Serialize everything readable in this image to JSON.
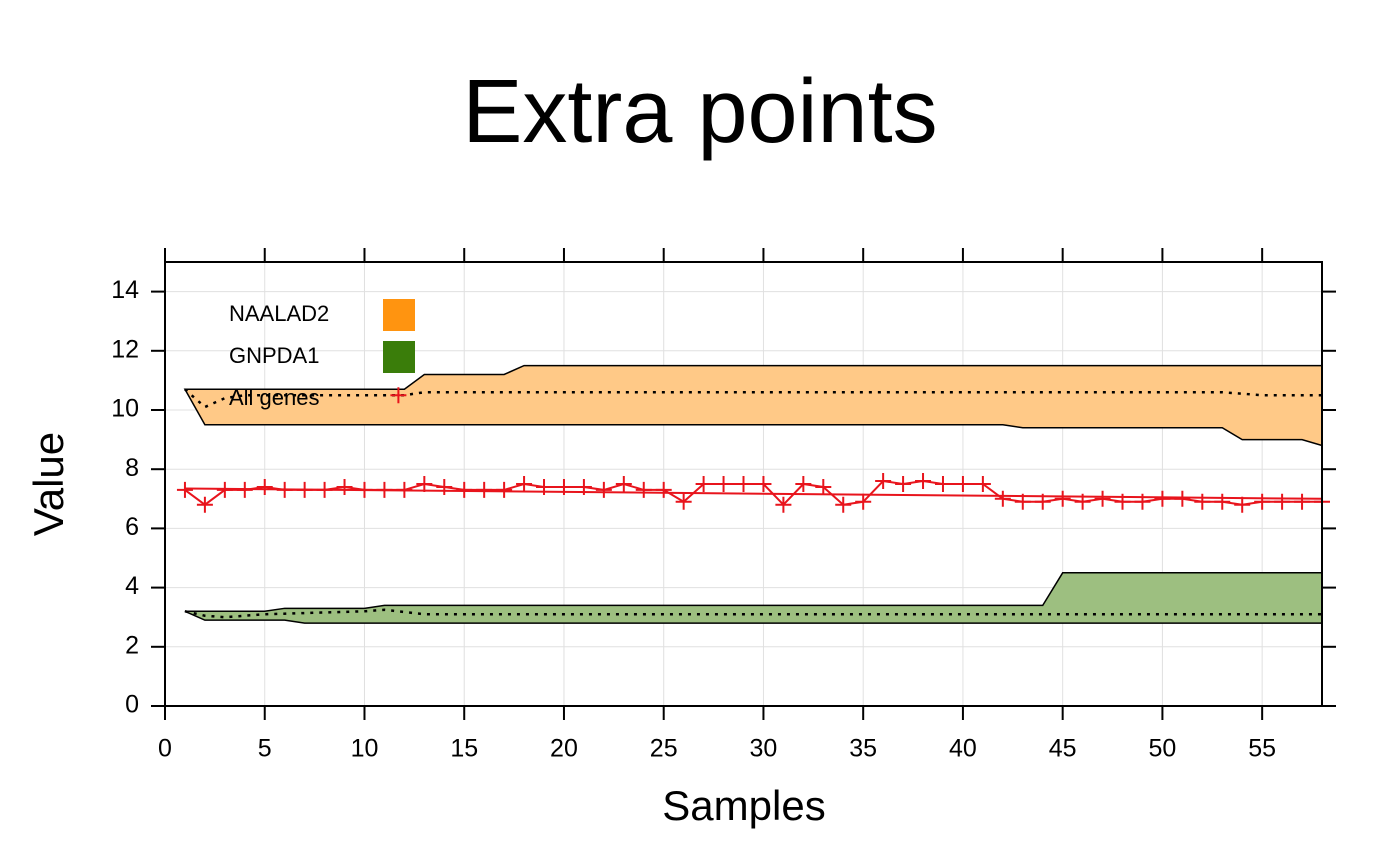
{
  "chart_data": {
    "type": "band",
    "title": "Extra points",
    "x_label": "Samples",
    "y_label": "Value",
    "xlim": [
      0,
      58
    ],
    "ylim": [
      0,
      15
    ],
    "xticks": [
      0,
      5,
      10,
      15,
      20,
      25,
      30,
      35,
      40,
      45,
      50,
      55
    ],
    "yticks": [
      0,
      2,
      4,
      6,
      8,
      10,
      12,
      14
    ],
    "grid": true,
    "legend": "top-left",
    "series": [
      {
        "name": "NAALAD2",
        "color": "#ff9410",
        "fill": "#ffc987",
        "x": [
          1,
          2,
          12,
          13,
          17,
          18,
          42,
          43,
          53,
          54,
          57,
          58
        ],
        "upper": [
          10.7,
          10.7,
          10.7,
          11.2,
          11.2,
          11.5,
          11.5,
          11.5,
          11.5,
          11.5,
          11.5,
          11.5
        ],
        "lower": [
          10.7,
          9.5,
          9.5,
          9.5,
          9.5,
          9.5,
          9.5,
          9.4,
          9.4,
          9.0,
          9.0,
          8.8
        ],
        "median": {
          "x": [
            1,
            2,
            3,
            4,
            12,
            13,
            53,
            54,
            55,
            58
          ],
          "values": [
            10.7,
            10.1,
            10.4,
            10.5,
            10.5,
            10.6,
            10.6,
            10.55,
            10.5,
            10.5
          ]
        }
      },
      {
        "name": "GNPDA1",
        "color": "#3a7d0a",
        "fill": "#9dbf80",
        "x": [
          1,
          2,
          5,
          6,
          7,
          10,
          11,
          44,
          45,
          58
        ],
        "upper": [
          3.2,
          3.2,
          3.2,
          3.3,
          3.3,
          3.3,
          3.4,
          3.4,
          4.5,
          4.5
        ],
        "lower": [
          3.2,
          2.9,
          2.9,
          2.9,
          2.8,
          2.8,
          2.8,
          2.8,
          2.8,
          2.8
        ],
        "median": {
          "x": [
            1,
            2,
            3,
            5,
            10,
            11,
            13,
            58
          ],
          "values": [
            3.2,
            3.05,
            3.0,
            3.1,
            3.2,
            3.25,
            3.1,
            3.1
          ]
        }
      },
      {
        "name": "All genes",
        "color": "#e8141c",
        "x": [
          1,
          2,
          3,
          4,
          5,
          6,
          7,
          8,
          9,
          10,
          11,
          12,
          13,
          14,
          15,
          16,
          17,
          18,
          19,
          20,
          21,
          22,
          23,
          24,
          25,
          26,
          27,
          28,
          29,
          30,
          31,
          32,
          33,
          34,
          35,
          36,
          37,
          38,
          39,
          40,
          41,
          42,
          43,
          44,
          45,
          46,
          47,
          48,
          49,
          50,
          51,
          52,
          53,
          54,
          55,
          56,
          57,
          58
        ],
        "values": [
          7.3,
          6.8,
          7.3,
          7.3,
          7.4,
          7.3,
          7.3,
          7.3,
          7.4,
          7.3,
          7.3,
          7.3,
          7.5,
          7.4,
          7.3,
          7.3,
          7.3,
          7.5,
          7.4,
          7.4,
          7.4,
          7.3,
          7.5,
          7.3,
          7.3,
          6.9,
          7.5,
          7.5,
          7.5,
          7.5,
          6.8,
          7.5,
          7.4,
          6.8,
          6.9,
          7.6,
          7.5,
          7.6,
          7.5,
          7.5,
          7.5,
          7.0,
          6.9,
          6.9,
          7.0,
          6.9,
          7.0,
          6.9,
          6.9,
          7.0,
          7.0,
          6.9,
          6.9,
          6.8,
          6.9,
          6.9,
          6.9,
          6.9
        ],
        "trend": {
          "x": [
            1,
            58
          ],
          "values": [
            7.35,
            7.0
          ]
        }
      }
    ],
    "extra_points": {
      "color": "#e8141c",
      "x": [
        11.7
      ],
      "values": [
        10.5
      ]
    }
  }
}
